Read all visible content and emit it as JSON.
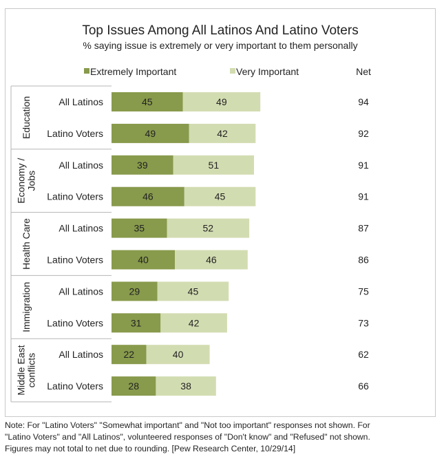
{
  "chart_data": {
    "type": "bar",
    "orientation": "horizontal",
    "stacked": true,
    "title": "Top Issues Among All Latinos And Latino Voters",
    "subtitle": "% saying issue is extremely or very important to them personally",
    "legend": [
      {
        "name": "Extremely Important",
        "color": "#889a4c"
      },
      {
        "name": "Very Important",
        "color": "#d2dcb1"
      }
    ],
    "net_label": "Net",
    "groups": [
      {
        "name": "Education",
        "label_lines": [
          "Education"
        ],
        "rows": [
          {
            "label": "All Latinos",
            "extremely": 45,
            "very": 49,
            "net": 94
          },
          {
            "label": "Latino Voters",
            "extremely": 49,
            "very": 42,
            "net": 92
          }
        ]
      },
      {
        "name": "Economy / Jobs",
        "label_lines": [
          "Economy /",
          "Jobs"
        ],
        "rows": [
          {
            "label": "All Latinos",
            "extremely": 39,
            "very": 51,
            "net": 91
          },
          {
            "label": "Latino Voters",
            "extremely": 46,
            "very": 45,
            "net": 91
          }
        ]
      },
      {
        "name": "Health Care",
        "label_lines": [
          "Health Care"
        ],
        "rows": [
          {
            "label": "All Latinos",
            "extremely": 35,
            "very": 52,
            "net": 87
          },
          {
            "label": "Latino Voters",
            "extremely": 40,
            "very": 46,
            "net": 86
          }
        ]
      },
      {
        "name": "Immigration",
        "label_lines": [
          "Immigration"
        ],
        "rows": [
          {
            "label": "All Latinos",
            "extremely": 29,
            "very": 45,
            "net": 75
          },
          {
            "label": "Latino Voters",
            "extremely": 31,
            "very": 42,
            "net": 73
          }
        ]
      },
      {
        "name": "Middle East conflicts",
        "label_lines": [
          "Middle East",
          "conflicts"
        ],
        "rows": [
          {
            "label": "All Latinos",
            "extremely": 22,
            "very": 40,
            "net": 62
          },
          {
            "label": "Latino Voters",
            "extremely": 28,
            "very": 38,
            "net": 66
          }
        ]
      }
    ]
  },
  "note_lines": [
    "Note: For \"Latino Voters\" \"Somewhat important\" and \"Not too important\" responses not shown. For",
    "\"Latino Voters\" and \"All Latinos\", volunteered responses of \"Don't know\" and \"Refused\" not shown.",
    "Figures may not total to net due to rounding. [Pew Research Center, 10/29/14]"
  ]
}
